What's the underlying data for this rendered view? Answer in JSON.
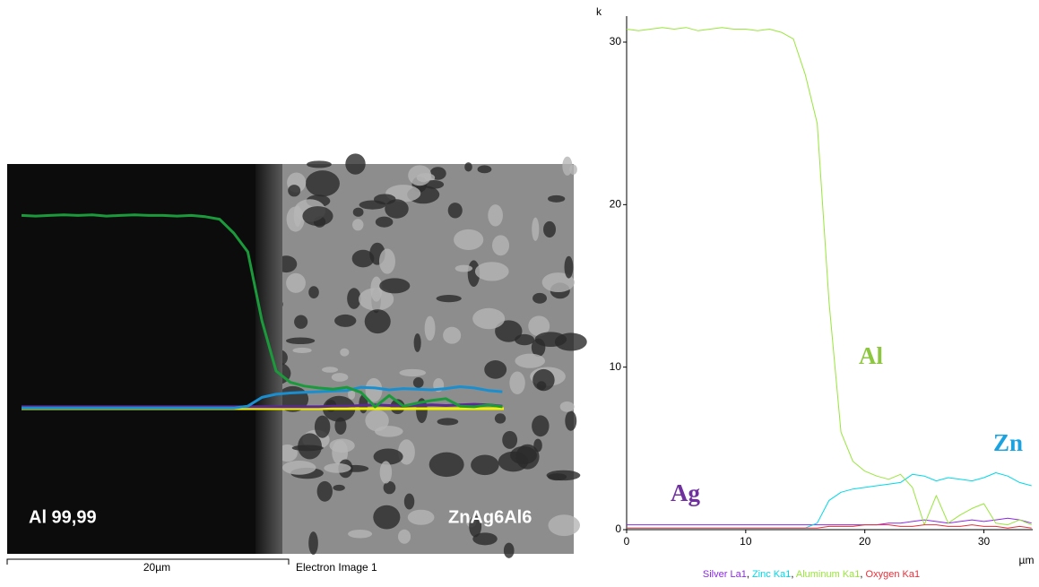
{
  "image": {
    "left_label": "Al 99,99",
    "right_label": "ZnAg6Al6",
    "scale_label": "20µm",
    "caption": "Electron Image 1"
  },
  "chart_data": {
    "type": "line",
    "y_label": "k",
    "x_label": "µm",
    "x": [
      0,
      1,
      2,
      3,
      4,
      5,
      6,
      7,
      8,
      9,
      10,
      11,
      12,
      13,
      14,
      15,
      16,
      17,
      18,
      19,
      20,
      21,
      22,
      23,
      24,
      25,
      26,
      27,
      28,
      29,
      30,
      31,
      32,
      33,
      34
    ],
    "xlim": [
      0,
      34.1
    ],
    "xticks": [
      0,
      10,
      20,
      30
    ],
    "ylim": [
      0,
      31.6
    ],
    "yticks": [
      0,
      10,
      20,
      30
    ],
    "legend_separator": ", ",
    "series": [
      {
        "name": "Silver La1",
        "color": "#8a2be2",
        "overlay_color": "#5b2a92",
        "values": [
          0.3,
          0.3,
          0.3,
          0.3,
          0.3,
          0.3,
          0.3,
          0.3,
          0.3,
          0.3,
          0.3,
          0.3,
          0.3,
          0.3,
          0.3,
          0.3,
          0.3,
          0.3,
          0.3,
          0.3,
          0.3,
          0.3,
          0.4,
          0.4,
          0.5,
          0.6,
          0.5,
          0.4,
          0.5,
          0.6,
          0.5,
          0.6,
          0.7,
          0.6,
          0.4
        ]
      },
      {
        "name": "Zinc Ka1",
        "color": "#00d8e8",
        "overlay_color": "#1a8fd0",
        "values": [
          0.1,
          0.1,
          0.1,
          0.1,
          0.1,
          0.1,
          0.1,
          0.1,
          0.1,
          0.1,
          0.1,
          0.1,
          0.1,
          0.1,
          0.1,
          0.1,
          0.4,
          1.8,
          2.3,
          2.5,
          2.6,
          2.7,
          2.8,
          2.9,
          3.4,
          3.3,
          3.0,
          3.2,
          3.1,
          3.0,
          3.2,
          3.5,
          3.3,
          2.9,
          2.7
        ]
      },
      {
        "name": "Aluminum Ka1",
        "color": "#99e63c",
        "overlay_color": "#1a9a3a",
        "values": [
          30.8,
          30.7,
          30.8,
          30.9,
          30.8,
          30.9,
          30.7,
          30.8,
          30.9,
          30.8,
          30.8,
          30.7,
          30.8,
          30.6,
          30.2,
          28,
          25,
          14,
          6,
          4.2,
          3.6,
          3.3,
          3.1,
          3.4,
          2.6,
          0.3,
          2.1,
          0.4,
          0.9,
          1.3,
          1.6,
          0.4,
          0.3,
          0.6,
          0.3
        ]
      },
      {
        "name": "Oxygen Ka1",
        "color": "#e8303a",
        "values": [
          0.1,
          0.1,
          0.1,
          0.1,
          0.1,
          0.1,
          0.1,
          0.1,
          0.1,
          0.1,
          0.1,
          0.1,
          0.1,
          0.1,
          0.1,
          0.1,
          0.1,
          0.2,
          0.2,
          0.2,
          0.3,
          0.3,
          0.3,
          0.2,
          0.2,
          0.3,
          0.3,
          0.2,
          0.2,
          0.3,
          0.2,
          0.2,
          0.1,
          0.2,
          0.1
        ]
      }
    ],
    "annotations": [
      {
        "text": "Al",
        "color": "#8dc63f"
      },
      {
        "text": "Zn",
        "color": "#1aa3e0"
      },
      {
        "text": "Ag",
        "color": "#7030a0"
      }
    ]
  }
}
